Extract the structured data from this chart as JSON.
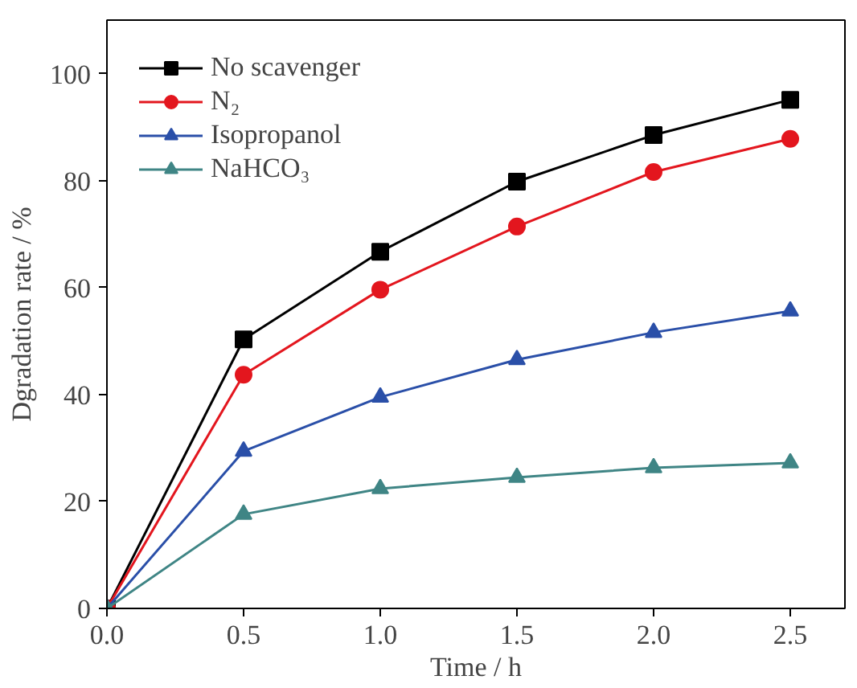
{
  "chart_data": {
    "type": "line",
    "xlabel": "Time / h",
    "ylabel": "Dgradation rate / %",
    "x": [
      0,
      0.5,
      1.0,
      1.5,
      2.0,
      2.5
    ],
    "series": [
      {
        "name": "No scavenger",
        "color": "#000000",
        "marker": "square",
        "values": [
          0,
          50.3,
          66.7,
          79.8,
          88.5,
          95.1
        ]
      },
      {
        "name": "N₂",
        "color": "#e3161e",
        "marker": "circle",
        "values": [
          0,
          43.7,
          59.6,
          71.4,
          81.6,
          87.8
        ]
      },
      {
        "name": "Isopropanol",
        "color": "#2a4fa8",
        "marker": "triangle",
        "values": [
          0,
          29.4,
          39.5,
          46.5,
          51.6,
          55.6
        ]
      },
      {
        "name": "NaHCO₃",
        "color": "#3f8585",
        "marker": "triangle",
        "values": [
          0,
          17.6,
          22.4,
          24.5,
          26.3,
          27.2
        ]
      }
    ],
    "xlim": [
      0,
      2.7
    ],
    "ylim": [
      0,
      110
    ],
    "xticks": [
      {
        "value": 0,
        "label": "0.0"
      },
      {
        "value": 0.5,
        "label": "0.5"
      },
      {
        "value": 1.0,
        "label": "1.0"
      },
      {
        "value": 1.5,
        "label": "1.5"
      },
      {
        "value": 2.0,
        "label": "2.0"
      },
      {
        "value": 2.5,
        "label": "2.5"
      }
    ],
    "yticks": [
      0,
      20,
      40,
      60,
      80,
      100
    ],
    "legend": "top left",
    "grid": false,
    "line_style": "solid"
  }
}
